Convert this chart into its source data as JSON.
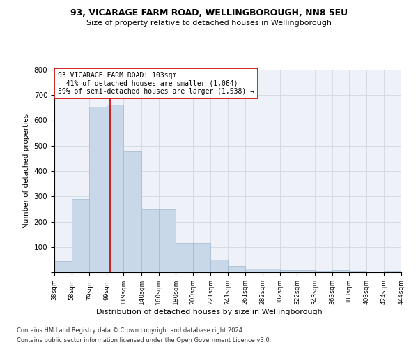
{
  "title1": "93, VICARAGE FARM ROAD, WELLINGBOROUGH, NN8 5EU",
  "title2": "Size of property relative to detached houses in Wellingborough",
  "xlabel": "Distribution of detached houses by size in Wellingborough",
  "ylabel": "Number of detached properties",
  "footnote1": "Contains HM Land Registry data © Crown copyright and database right 2024.",
  "footnote2": "Contains public sector information licensed under the Open Government Licence v3.0.",
  "annotation_line1": "93 VICARAGE FARM ROAD: 103sqm",
  "annotation_line2": "← 41% of detached houses are smaller (1,064)",
  "annotation_line3": "59% of semi-detached houses are larger (1,538) →",
  "bar_color": "#c8d8e8",
  "bar_edge_color": "#a0b8d0",
  "vline_color": "#cc0000",
  "vline_x": 103,
  "bins": [
    38,
    58,
    79,
    99,
    119,
    140,
    160,
    180,
    200,
    221,
    241,
    261,
    282,
    302,
    322,
    343,
    363,
    383,
    403,
    424,
    444
  ],
  "values": [
    43,
    291,
    655,
    662,
    476,
    248,
    247,
    115,
    115,
    50,
    26,
    15,
    15,
    8,
    8,
    6,
    8,
    6,
    3,
    5
  ],
  "ylim": [
    0,
    800
  ],
  "yticks": [
    0,
    100,
    200,
    300,
    400,
    500,
    600,
    700,
    800
  ],
  "grid_color": "#d0d8e0",
  "bg_color": "#eef2f8"
}
